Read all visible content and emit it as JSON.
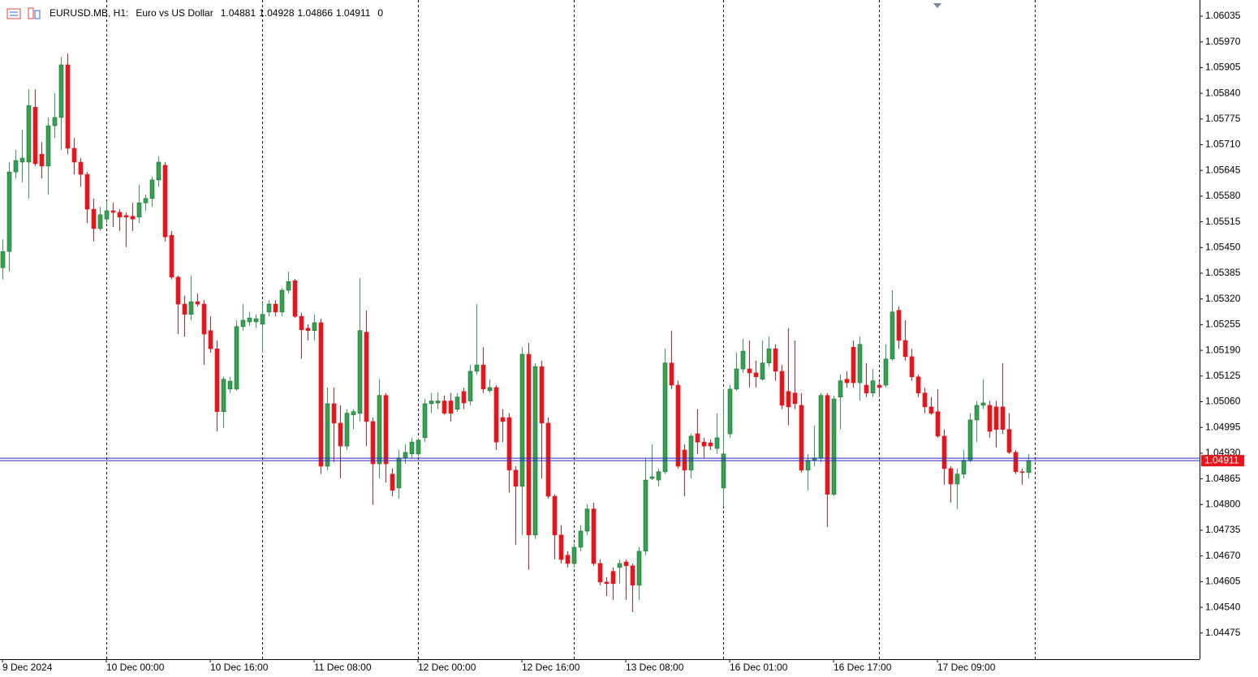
{
  "chart_data": {
    "type": "candlestick",
    "symbol": "EURUSD.MB, H1:",
    "description": "Euro vs US Dollar",
    "header_extra": 0,
    "up_color": "#35a152",
    "down_color": "#e8141b",
    "price_line_color": "#2a2ad0",
    "price_label_color": "#e8141b",
    "ylim": [
      1.04409,
      1.06076
    ],
    "yticks": [
      1.06035,
      {
        "value": 1.0597,
        "label": "1.05970"
      },
      1.05905,
      {
        "value": 1.0584,
        "label": "1.05840"
      },
      1.05775,
      {
        "value": 1.0571,
        "label": "1.05710"
      },
      1.05645,
      {
        "value": 1.0558,
        "label": "1.05580"
      },
      1.05515,
      {
        "value": 1.0545,
        "label": "1.05450"
      },
      1.05385,
      {
        "value": 1.0532,
        "label": "1.05320"
      },
      1.05255,
      {
        "value": 1.0519,
        "label": "1.05190"
      },
      1.05125,
      {
        "value": 1.0506,
        "label": "1.05060"
      },
      1.04995,
      {
        "value": 1.0493,
        "label": "1.04930"
      },
      1.04865,
      {
        "value": 1.048,
        "label": "1.04800"
      },
      1.04735,
      {
        "value": 1.0467,
        "label": "1.04670"
      },
      1.04605,
      {
        "value": 1.0454,
        "label": "1.04540"
      },
      1.04475
    ],
    "categories": [
      "9 Dec 2024",
      null,
      null,
      null,
      null,
      null,
      null,
      null,
      null,
      null,
      null,
      null,
      null,
      null,
      null,
      null,
      "10 Dec 00:00",
      null,
      null,
      null,
      null,
      null,
      null,
      null,
      null,
      null,
      null,
      null,
      null,
      null,
      null,
      null,
      "10 Dec 16:00",
      null,
      null,
      null,
      null,
      null,
      null,
      null,
      null,
      null,
      null,
      null,
      null,
      null,
      null,
      null,
      "11 Dec 08:00",
      null,
      null,
      null,
      null,
      null,
      null,
      null,
      null,
      null,
      null,
      null,
      null,
      null,
      null,
      null,
      "12 Dec 00:00",
      null,
      null,
      null,
      null,
      null,
      null,
      null,
      null,
      null,
      null,
      null,
      null,
      null,
      null,
      null,
      "12 Dec 16:00",
      null,
      null,
      null,
      null,
      null,
      null,
      null,
      null,
      null,
      null,
      null,
      null,
      null,
      null,
      null,
      "13 Dec 08:00",
      null,
      null,
      null,
      null,
      null,
      null,
      null,
      null,
      null,
      null,
      null,
      null,
      null,
      null,
      null,
      "16 Dec 01:00",
      null,
      null,
      null,
      null,
      null,
      null,
      null,
      null,
      null,
      null,
      null,
      null,
      null,
      null,
      null,
      "16 Dec 17:00",
      null,
      null,
      null,
      null,
      null,
      null,
      null,
      null,
      null,
      null,
      null,
      null,
      null,
      null,
      null,
      "17 Dec 09:00",
      null,
      null,
      null,
      null,
      null,
      null,
      null,
      null,
      null,
      null,
      null,
      null,
      null,
      null
    ],
    "open": [
      1.05399,
      1.0544,
      1.05641,
      1.05666,
      1.05666,
      1.05805,
      1.05686,
      1.05656,
      1.05758,
      1.05779,
      1.05912,
      1.05701,
      1.05666,
      1.05635,
      1.05547,
      1.05498,
      1.05522,
      1.05543,
      1.05539,
      1.05531,
      1.05529,
      1.05527,
      1.05563,
      1.05574,
      1.05621,
      1.05658,
      1.05481,
      1.05375,
      1.05307,
      1.05281,
      1.05313,
      1.05307,
      1.0524,
      1.05194,
      1.05035,
      1.05092,
      1.05092,
      1.0525,
      1.05262,
      1.05262,
      1.05256,
      1.05287,
      1.05307,
      1.05287,
      1.05342,
      1.05366,
      1.05276,
      1.05246,
      1.0524,
      1.0526,
      1.04897,
      1.05055,
      1.05006,
      1.04948,
      1.05027,
      1.05031,
      1.05236,
      1.0501,
      1.04903,
      1.05076,
      1.04877,
      1.04842,
      1.04918,
      1.04928,
      1.04928,
      1.04969,
      1.05055,
      1.05057,
      1.05062,
      1.05062,
      1.05041,
      1.05086,
      1.05062,
      1.05137,
      1.05153,
      1.05088,
      1.05096,
      1.0502,
      1.0502,
      1.04887,
      1.04846,
      1.0518,
      1.04723,
      1.05149,
      1.05006,
      1.04821,
      1.04723,
      1.04672,
      1.04651,
      1.04692,
      1.04733,
      1.04789,
      1.04651,
      1.04604,
      1.04631,
      1.04641,
      1.04655,
      1.04645,
      1.04596,
      1.04682,
      1.04866,
      1.04862,
      1.04883,
      1.05158,
      1.05102,
      1.04938,
      1.04887,
      1.04979,
      1.04958,
      1.04956,
      1.04942,
      1.04842,
      1.04979,
      1.05092,
      1.05143,
      1.05143,
      1.05133,
      1.05117,
      1.05158,
      1.05194,
      1.05137,
      1.05086,
      1.05082,
      1.05051,
      1.04887,
      1.04912,
      1.04918,
      1.05076,
      1.04826,
      1.05072,
      1.05117,
      1.05198,
      1.05108,
      1.05102,
      1.05082,
      1.05102,
      1.05102,
      1.05168,
      1.05291,
      1.05215,
      1.05174,
      1.05123,
      1.05082,
      1.05047,
      1.05035,
      1.04973,
      1.04891,
      1.04852,
      1.04877,
      1.04912,
      1.05014,
      1.05051,
      1.05051,
      1.05047,
      1.05047,
      1.0499,
      1.04932,
      1.04883,
      1.04881
    ],
    "high": [
      1.05471,
      1.05666,
      1.05697,
      1.05748,
      1.0585,
      1.0585,
      1.05717,
      1.05779,
      1.0584,
      1.05932,
      1.05941,
      1.05727,
      1.05676,
      1.05641,
      1.05574,
      1.05553,
      1.05568,
      1.05563,
      1.05547,
      1.05539,
      1.05563,
      1.05609,
      1.05584,
      1.05629,
      1.05681,
      1.05666,
      1.05492,
      1.05379,
      1.05328,
      1.05379,
      1.05334,
      1.05317,
      1.05276,
      1.05215,
      1.05123,
      1.05123,
      1.05266,
      1.05307,
      1.05287,
      1.05281,
      1.05311,
      1.05317,
      1.05317,
      1.05348,
      1.05389,
      1.05371,
      1.05285,
      1.05256,
      1.05281,
      1.0527,
      1.05096,
      1.05096,
      1.05051,
      1.05041,
      1.05041,
      1.05373,
      1.05291,
      1.0502,
      1.05117,
      1.05082,
      1.04891,
      1.04938,
      1.04952,
      1.04969,
      1.04969,
      1.05067,
      1.05082,
      1.05084,
      1.05076,
      1.05082,
      1.05082,
      1.05096,
      1.05153,
      1.05307,
      1.05198,
      1.05117,
      1.05102,
      1.05041,
      1.05031,
      1.04897,
      1.05198,
      1.05209,
      1.05158,
      1.05164,
      1.0502,
      1.04826,
      1.04748,
      1.04682,
      1.04702,
      1.04748,
      1.04801,
      1.04805,
      1.04661,
      1.04616,
      1.04641,
      1.04661,
      1.04661,
      1.04651,
      1.04692,
      1.04918,
      1.04952,
      1.04891,
      1.05194,
      1.0524,
      1.05113,
      1.04952,
      1.04979,
      1.05041,
      1.04969,
      1.04965,
      1.05031,
      1.05092,
      1.05102,
      1.05184,
      1.05219,
      1.05215,
      1.05164,
      1.05215,
      1.05225,
      1.05205,
      1.05153,
      1.05246,
      1.05215,
      1.05082,
      1.04928,
      1.05,
      1.05082,
      1.05082,
      1.05076,
      1.05129,
      1.05137,
      1.05215,
      1.05225,
      1.05158,
      1.05143,
      1.05113,
      1.05205,
      1.05342,
      1.05301,
      1.05266,
      1.05194,
      1.05129,
      1.05096,
      1.05072,
      1.05092,
      1.0499,
      1.04897,
      1.04891,
      1.04938,
      1.05031,
      1.05062,
      1.05117,
      1.05062,
      1.05062,
      1.05158,
      1.05031,
      1.04938,
      1.04891,
      1.04928
    ],
    "low": [
      1.05369,
      1.05389,
      1.05625,
      1.05615,
      1.05574,
      1.05656,
      1.05625,
      1.05584,
      1.05727,
      1.05697,
      1.05686,
      1.05635,
      1.05604,
      1.05512,
      1.05465,
      1.05492,
      1.05512,
      1.05502,
      1.05492,
      1.05451,
      1.05492,
      1.05512,
      1.05543,
      1.05553,
      1.05604,
      1.05465,
      1.05369,
      1.05231,
      1.05225,
      1.05266,
      1.05301,
      1.05153,
      1.05184,
      1.04985,
      1.04994,
      1.05082,
      1.05088,
      1.0524,
      1.05252,
      1.05246,
      1.05184,
      1.05276,
      1.05276,
      1.05276,
      1.05334,
      1.05272,
      1.05169,
      1.05215,
      1.05215,
      1.04877,
      1.04887,
      1.04907,
      1.04866,
      1.04938,
      1.0499,
      1.0501,
      1.04948,
      1.04799,
      1.04866,
      1.04856,
      1.04821,
      1.04815,
      1.04903,
      1.04918,
      1.04922,
      1.04958,
      1.05031,
      1.05041,
      1.05027,
      1.0501,
      1.05035,
      1.05041,
      1.05051,
      1.05129,
      1.05082,
      1.05082,
      1.04938,
      1.04958,
      1.0483,
      1.04698,
      1.04723,
      1.04635,
      1.04713,
      1.04866,
      1.04815,
      1.04661,
      1.04651,
      1.04641,
      1.04641,
      1.04682,
      1.04723,
      1.04645,
      1.04596,
      1.04569,
      1.04559,
      1.046,
      1.04559,
      1.04528,
      1.04559,
      1.04672,
      1.04862,
      1.04846,
      1.04877,
      1.05092,
      1.04891,
      1.04821,
      1.04866,
      1.04928,
      1.04918,
      1.04938,
      1.04928,
      1.04795,
      1.04969,
      1.05088,
      1.05133,
      1.05096,
      1.05096,
      1.05113,
      1.05149,
      1.05113,
      1.05041,
      1.05,
      1.05041,
      1.04881,
      1.04836,
      1.04897,
      1.04907,
      1.04743,
      1.04821,
      1.0499,
      1.05096,
      1.05096,
      1.05062,
      1.05072,
      1.05072,
      1.05072,
      1.05096,
      1.05164,
      1.05194,
      1.05164,
      1.05113,
      1.05072,
      1.05031,
      1.05027,
      1.04969,
      1.0485,
      1.04805,
      1.04789,
      1.04866,
      1.04907,
      1.04958,
      1.05041,
      1.04969,
      1.04944,
      1.04979,
      1.04928,
      1.04877,
      1.0485,
      1.04866
    ],
    "close": [
      1.0544,
      1.05641,
      1.0567,
      1.05676,
      1.05809,
      1.05662,
      1.05656,
      1.05758,
      1.05779,
      1.05912,
      1.05701,
      1.05666,
      1.05635,
      1.05547,
      1.05498,
      1.05533,
      1.05543,
      1.05539,
      1.05527,
      1.05527,
      1.05522,
      1.05563,
      1.05574,
      1.05621,
      1.05666,
      1.05477,
      1.05375,
      1.05307,
      1.05281,
      1.05313,
      1.05307,
      1.05231,
      1.05194,
      1.05035,
      1.05117,
      1.05112,
      1.0525,
      1.05266,
      1.05272,
      1.0527,
      1.05281,
      1.05307,
      1.05287,
      1.05342,
      1.05364,
      1.05276,
      1.05242,
      1.0524,
      1.0526,
      1.04897,
      1.05055,
      1.05006,
      1.04948,
      1.05031,
      1.05035,
      1.0524,
      1.0501,
      1.04903,
      1.05076,
      1.04903,
      1.04836,
      1.04918,
      1.04932,
      1.04958,
      1.04963,
      1.05055,
      1.05062,
      1.05062,
      1.05031,
      1.05031,
      1.05072,
      1.05057,
      1.05137,
      1.05153,
      1.05092,
      1.05096,
      1.04958,
      1.0501,
      1.04887,
      1.04846,
      1.0518,
      1.04723,
      1.05149,
      1.05006,
      1.04821,
      1.04723,
      1.04661,
      1.04651,
      1.04692,
      1.04733,
      1.04789,
      1.04651,
      1.04604,
      1.046,
      1.046,
      1.04651,
      1.04645,
      1.04596,
      1.04682,
      1.04862,
      1.0487,
      1.04883,
      1.05158,
      1.05102,
      1.04897,
      1.04887,
      1.04973,
      1.04958,
      1.04948,
      1.04948,
      1.04969,
      1.04928,
      1.05092,
      1.05143,
      1.05188,
      1.05133,
      1.05123,
      1.05158,
      1.05194,
      1.05137,
      1.05051,
      1.05047,
      1.05055,
      1.04887,
      1.04912,
      1.04918,
      1.05076,
      1.04826,
      1.05067,
      1.05113,
      1.05108,
      1.05108,
      1.05205,
      1.05082,
      1.05113,
      1.05096,
      1.05168,
      1.05287,
      1.05215,
      1.05174,
      1.05123,
      1.05082,
      1.05047,
      1.05031,
      1.04973,
      1.04891,
      1.04852,
      1.04877,
      1.04912,
      1.05014,
      1.05051,
      1.05057,
      1.04985,
      1.0499,
      1.0499,
      1.04932,
      1.04883,
      1.04881,
      1.04911
    ]
  }
}
